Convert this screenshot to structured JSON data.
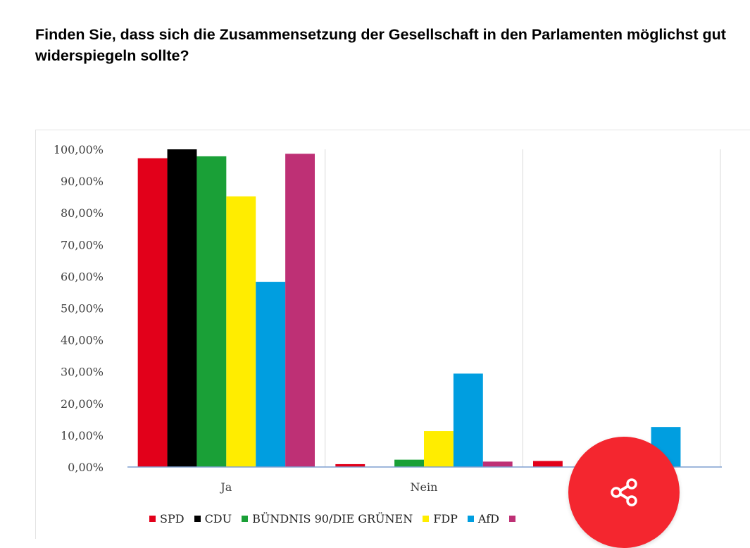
{
  "title": "Finden Sie, dass sich die Zusammensetzung der Gesellschaft in den Parlamenten möglichst gut widerspiegeln sollte?",
  "share_icon": "share-icon",
  "chart_data": {
    "type": "bar",
    "title": "Finden Sie, dass sich die Zusammensetzung der Gesellschaft in den Parlamenten möglichst gut widerspiegeln sollte?",
    "xlabel": "",
    "ylabel": "",
    "categories": [
      "Ja",
      "Nein",
      ""
    ],
    "ylim": [
      0,
      100
    ],
    "y_ticks": [
      "0,00%",
      "10,00%",
      "20,00%",
      "30,00%",
      "40,00%",
      "50,00%",
      "60,00%",
      "70,00%",
      "80,00%",
      "90,00%",
      "100,00%"
    ],
    "grid": "vertical separators between categories",
    "legend_position": "bottom",
    "series": [
      {
        "name": "SPD",
        "color": "#e2001a",
        "values": [
          97.2,
          0.9,
          1.9
        ]
      },
      {
        "name": "CDU",
        "color": "#000000",
        "values": [
          100,
          0,
          null
        ]
      },
      {
        "name": "BÜNDNIS 90/DIE GRÜNEN",
        "color": "#1aa037",
        "values": [
          97.8,
          2.3,
          null
        ]
      },
      {
        "name": "FDP",
        "color": "#ffed00",
        "values": [
          85.2,
          11.3,
          null
        ]
      },
      {
        "name": "AfD",
        "color": "#009ee0",
        "values": [
          58.3,
          29.4,
          12.6
        ]
      },
      {
        "name": "",
        "color": "#be3075",
        "values": [
          98.6,
          1.7,
          null
        ]
      }
    ]
  }
}
